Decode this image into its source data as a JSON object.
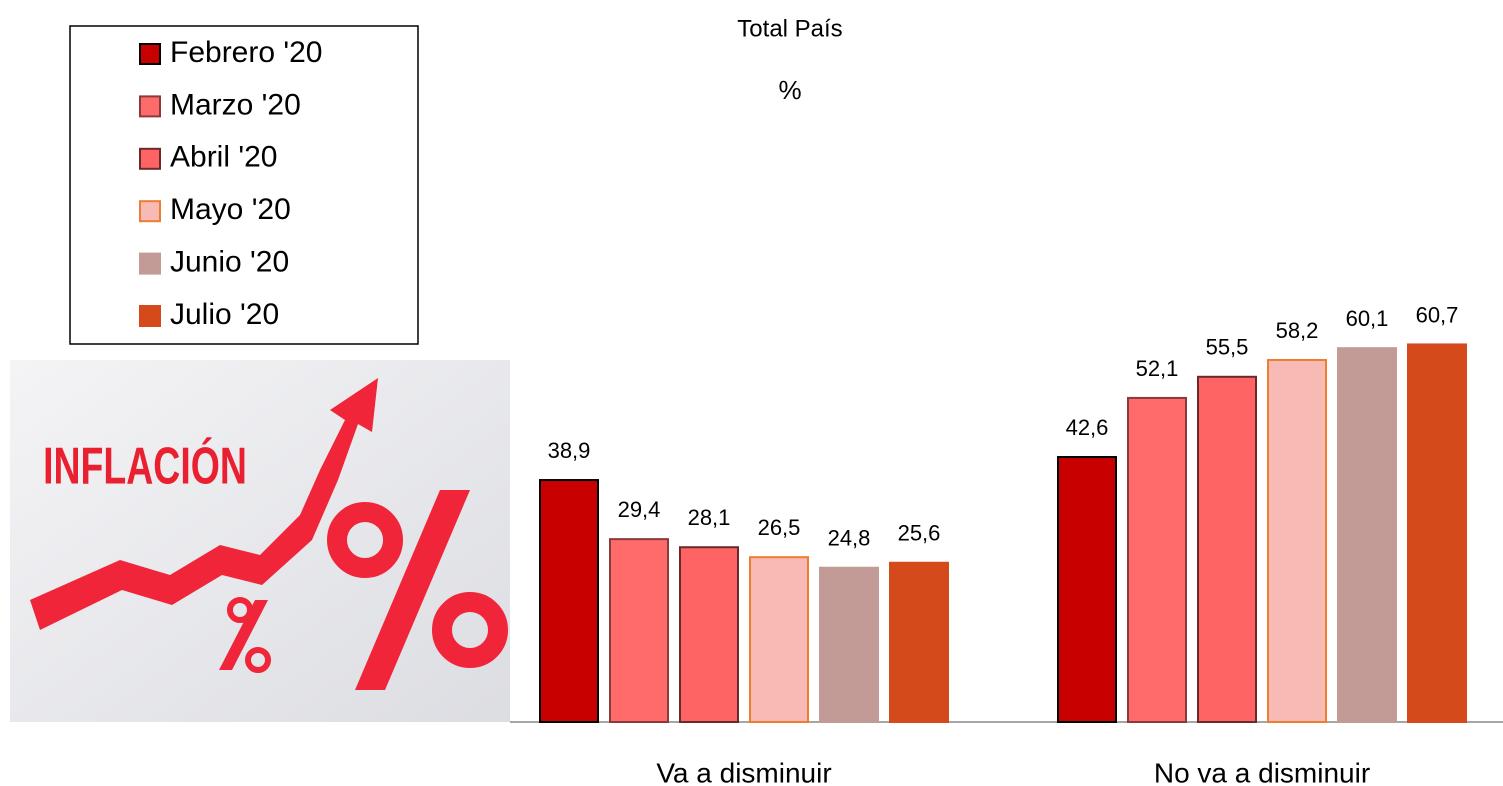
{
  "chart_data": {
    "type": "bar",
    "title": "Total País",
    "subtitle": "%",
    "illustration_text": "INFLACIÓN",
    "categories": [
      "Va a disminuir",
      "No va a disminuir"
    ],
    "series": [
      {
        "name": "Febrero '20",
        "color": "#c80000",
        "stroke": "#000000",
        "values": [
          38.9,
          42.6
        ],
        "value_labels": [
          "38,9",
          "42,6"
        ]
      },
      {
        "name": "Marzo '20",
        "color": "#ff6b6b",
        "stroke": "#8a3a3a",
        "values": [
          29.4,
          52.1
        ],
        "value_labels": [
          "29,4",
          "52,1"
        ]
      },
      {
        "name": "Abril '20",
        "color": "#ff6464",
        "stroke": "#6a2a2a",
        "values": [
          28.1,
          55.5
        ],
        "value_labels": [
          "28,1",
          "55,5"
        ]
      },
      {
        "name": "Mayo '20",
        "color": "#f7bab4",
        "stroke": "#ed7d31",
        "values": [
          26.5,
          58.2
        ],
        "value_labels": [
          "26,5",
          "58,2"
        ]
      },
      {
        "name": "Junio '20",
        "color": "#c29a96",
        "stroke": "#c29a96",
        "values": [
          24.8,
          60.1
        ],
        "value_labels": [
          "24,8",
          "60,1"
        ]
      },
      {
        "name": "Julio '20",
        "color": "#d44a1a",
        "stroke": "#d44a1a",
        "values": [
          25.6,
          60.7
        ],
        "value_labels": [
          "25,6",
          "60,7"
        ]
      }
    ]
  }
}
